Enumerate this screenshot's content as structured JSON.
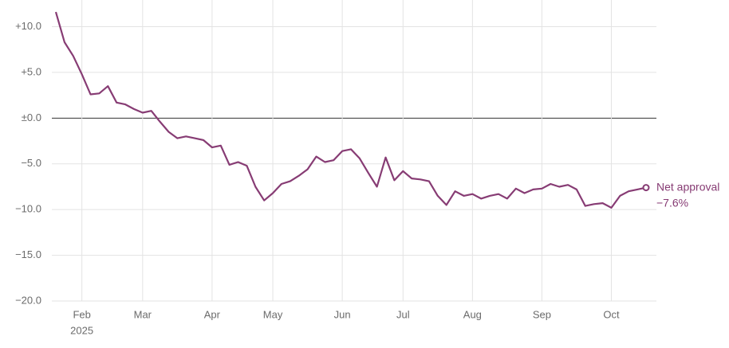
{
  "chart_data": {
    "type": "line",
    "categories": [
      null,
      null,
      null,
      "Feb",
      null,
      null,
      null,
      null,
      null,
      null,
      "Mar",
      null,
      null,
      null,
      null,
      null,
      null,
      null,
      "Apr",
      null,
      null,
      null,
      null,
      null,
      null,
      "May",
      null,
      null,
      null,
      null,
      null,
      null,
      null,
      "Jun",
      null,
      null,
      null,
      null,
      null,
      null,
      "Jul",
      null,
      null,
      null,
      null,
      null,
      null,
      null,
      "Aug",
      null,
      null,
      null,
      null,
      null,
      null,
      null,
      "Sep",
      null,
      null,
      null,
      null,
      null,
      null,
      null,
      "Oct",
      null,
      null,
      null,
      null
    ],
    "x_year_label": "2025",
    "series": [
      {
        "name": "Net approval",
        "color": "#873c74",
        "values": [
          11.6,
          8.3,
          6.8,
          4.8,
          2.6,
          2.7,
          3.5,
          1.7,
          1.5,
          1.0,
          0.6,
          0.8,
          -0.4,
          -1.5,
          -2.2,
          -2.0,
          -2.2,
          -2.4,
          -3.2,
          -3.0,
          -5.1,
          -4.8,
          -5.2,
          -7.5,
          -9.0,
          -8.2,
          -7.2,
          -6.9,
          -6.3,
          -5.6,
          -4.2,
          -4.8,
          -4.6,
          -3.6,
          -3.4,
          -4.4,
          -6.0,
          -7.5,
          -4.3,
          -6.8,
          -5.8,
          -6.6,
          -6.7,
          -6.9,
          -8.5,
          -9.5,
          -8.0,
          -8.5,
          -8.3,
          -8.8,
          -8.5,
          -8.3,
          -8.8,
          -7.7,
          -8.2,
          -7.8,
          -7.7,
          -7.2,
          -7.5,
          -7.3,
          -7.8,
          -9.6,
          -9.4,
          -9.3,
          -9.8,
          -8.5,
          -8.0,
          -7.8,
          -7.6
        ],
        "value_labels": [
          null,
          null,
          null,
          null,
          null,
          null,
          null,
          null,
          null,
          null,
          null,
          null,
          null,
          null,
          null,
          null,
          null,
          null,
          null,
          null,
          null,
          null,
          null,
          null,
          null,
          null,
          null,
          null,
          null,
          null,
          null,
          null,
          null,
          null,
          null,
          null,
          null,
          null,
          null,
          null,
          null,
          null,
          null,
          null,
          null,
          null,
          null,
          null,
          null,
          null,
          null,
          null,
          null,
          null,
          null,
          null,
          null,
          null,
          null,
          null,
          null,
          null,
          null,
          null,
          null,
          null,
          null,
          null,
          "−7.6%"
        ]
      }
    ],
    "ylim": [
      -20,
      11.7
    ],
    "yticks": [
      {
        "value": -20,
        "label": "−20.0"
      },
      {
        "value": -15,
        "label": "−15.0"
      },
      {
        "value": -10,
        "label": "−10.0"
      },
      {
        "value": -5,
        "label": "−5.0"
      },
      {
        "value": 0,
        "label": "±0.0"
      },
      {
        "value": 5,
        "label": "+5.0"
      },
      {
        "value": 10,
        "label": "+10.0"
      }
    ],
    "grid": true
  }
}
